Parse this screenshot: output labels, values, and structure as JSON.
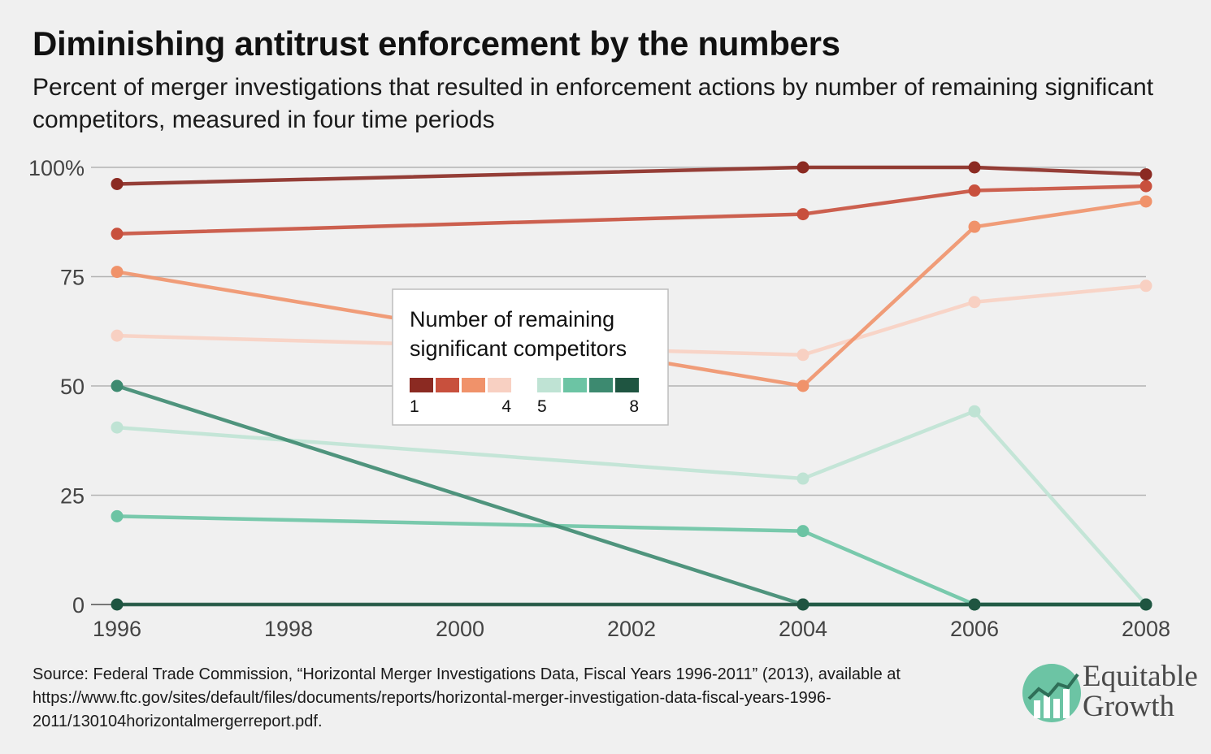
{
  "title": "Diminishing antitrust enforcement by the numbers",
  "subtitle": "Percent of merger investigations that resulted in enforcement actions by number of remaining significant competitors, measured in four time periods",
  "chart_data": {
    "type": "line",
    "title": "Diminishing antitrust enforcement by the numbers",
    "xlabel": "",
    "ylabel": "",
    "x": [
      1996,
      2004,
      2006,
      2008
    ],
    "xlim": [
      1996,
      2008
    ],
    "ylim": [
      0,
      100
    ],
    "x_ticks": [
      "1996",
      "1998",
      "2000",
      "2002",
      "2004",
      "2006",
      "2008"
    ],
    "x_tick_values": [
      1996,
      1998,
      2000,
      2002,
      2004,
      2006,
      2008
    ],
    "y_ticks": [
      "0",
      "25",
      "50",
      "75",
      "100%"
    ],
    "y_tick_values": [
      0,
      25,
      50,
      75,
      100
    ],
    "grid": true,
    "legend_position": "center",
    "series": [
      {
        "name": "1",
        "color": "#8b2a22",
        "values": [
          96.2,
          100,
          100,
          98.4
        ]
      },
      {
        "name": "2",
        "color": "#c8503d",
        "values": [
          84.8,
          89.3,
          94.7,
          95.7
        ]
      },
      {
        "name": "3",
        "color": "#f0926a",
        "values": [
          76.1,
          50,
          86.4,
          92.2
        ]
      },
      {
        "name": "4",
        "color": "#f8d0c2",
        "values": [
          61.5,
          57.1,
          69.2,
          72.9
        ]
      },
      {
        "name": "5",
        "color": "#bfe3d4",
        "values": [
          40.5,
          28.8,
          44.2,
          0
        ]
      },
      {
        "name": "6",
        "color": "#6cc4a4",
        "values": [
          20.2,
          16.8,
          0,
          0
        ]
      },
      {
        "name": "7",
        "color": "#3d8a70",
        "values": [
          50,
          0,
          0,
          0
        ]
      },
      {
        "name": "8",
        "color": "#1f5541",
        "values": [
          0,
          0,
          0,
          0
        ]
      }
    ]
  },
  "legend": {
    "title_line1": "Number of remaining",
    "title_line2": "significant competitors",
    "label_1": "1",
    "label_4": "4",
    "label_5": "5",
    "label_8": "8"
  },
  "footer": {
    "source": "Source: Federal Trade Commission, “Horizontal Merger Investigations Data, Fiscal Years 1996-2011” (2013), available at https://www.ftc.gov/sites/default/files/documents/reports/horizontal-merger-investigation-data-fiscal-years-1996-2011/130104horizontalmergerreport.pdf."
  },
  "logo": {
    "line1": "Equitable",
    "line2": "Growth",
    "icon": "rising-chart-icon",
    "color": "#6cc4a4"
  }
}
